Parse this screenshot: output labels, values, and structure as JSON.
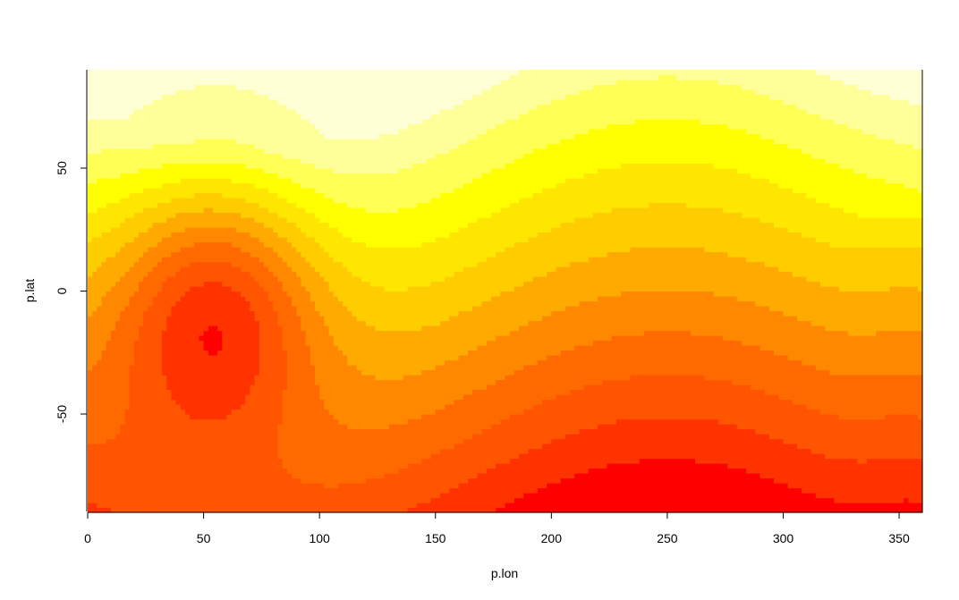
{
  "chart_data": {
    "type": "heatmap",
    "title": "",
    "xlabel": "p.lon",
    "ylabel": "p.lat",
    "xlim": [
      0,
      360
    ],
    "ylim": [
      -90,
      90
    ],
    "x_ticks": [
      0,
      50,
      100,
      150,
      200,
      250,
      300,
      350
    ],
    "x_tick_labels": [
      "0",
      "50",
      "100",
      "150",
      "200",
      "250",
      "300",
      "350"
    ],
    "y_ticks": [
      -50,
      0,
      50
    ],
    "y_tick_labels": [
      "-50",
      "0",
      "50"
    ],
    "grid": false,
    "legend": "none",
    "palette": [
      "#FF0000",
      "#FF3300",
      "#FF5500",
      "#FF6A00",
      "#FF8800",
      "#FFAA00",
      "#FFCC00",
      "#FFE600",
      "#FFFF00",
      "#FFFF55",
      "#FFFF99",
      "#FFFFD5"
    ],
    "grid_resolution": {
      "lon_step_deg": 2,
      "lat_step_deg": 2
    },
    "field": {
      "description": "level index 0 (red) to 11 (pale yellow) as function of lon, lat",
      "high_center_lon": 55,
      "high_center_lat": -5,
      "trough_lon": 250,
      "trough_lat_boundary": 30
    }
  }
}
